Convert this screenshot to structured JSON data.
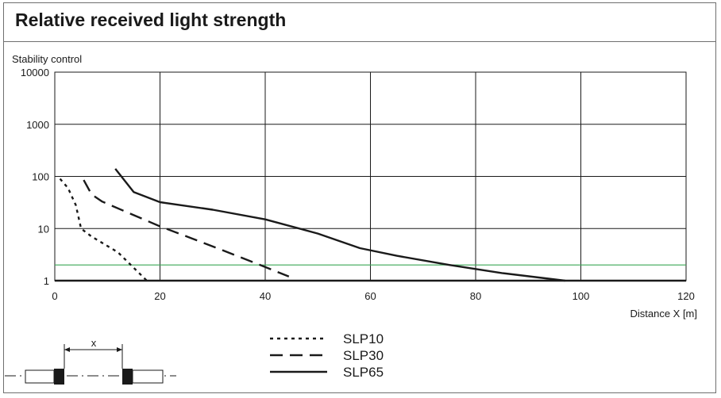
{
  "chart_data": {
    "type": "line",
    "title": "Relative received light strength",
    "ylabel": "Stability control",
    "xlabel": "Distance X [m]",
    "xlim": [
      0,
      120
    ],
    "ylim": [
      1,
      10000
    ],
    "yscale": "log",
    "xticks": [
      "0",
      "20",
      "40",
      "60",
      "80",
      "100",
      "120"
    ],
    "yticks": [
      "1",
      "10",
      "100",
      "1000",
      "10000"
    ],
    "grid": true,
    "threshold": {
      "y": 2,
      "color": "#3aa655"
    },
    "legend_position": "bottom-center",
    "series": [
      {
        "name": "SLP10",
        "style": "dotted",
        "points": [
          [
            1,
            90
          ],
          [
            2.5,
            60
          ],
          [
            4,
            28
          ],
          [
            5,
            10
          ],
          [
            7,
            7
          ],
          [
            12,
            3.5
          ],
          [
            17.5,
            1
          ]
        ]
      },
      {
        "name": "SLP30",
        "style": "dashed",
        "points": [
          [
            5.5,
            85
          ],
          [
            7,
            45
          ],
          [
            9,
            33
          ],
          [
            14,
            20
          ],
          [
            20,
            11
          ],
          [
            26,
            6.5
          ],
          [
            32,
            3.8
          ],
          [
            38,
            2.2
          ],
          [
            44.5,
            1.2
          ]
        ]
      },
      {
        "name": "SLP65",
        "style": "solid",
        "points": [
          [
            11.5,
            140
          ],
          [
            15,
            50
          ],
          [
            20,
            32
          ],
          [
            30,
            23
          ],
          [
            40,
            15
          ],
          [
            50,
            8
          ],
          [
            58,
            4.2
          ],
          [
            65,
            3
          ],
          [
            75,
            2
          ],
          [
            85,
            1.4
          ],
          [
            97,
            1
          ]
        ]
      }
    ]
  },
  "sensor_diagram": {
    "label": "x"
  }
}
